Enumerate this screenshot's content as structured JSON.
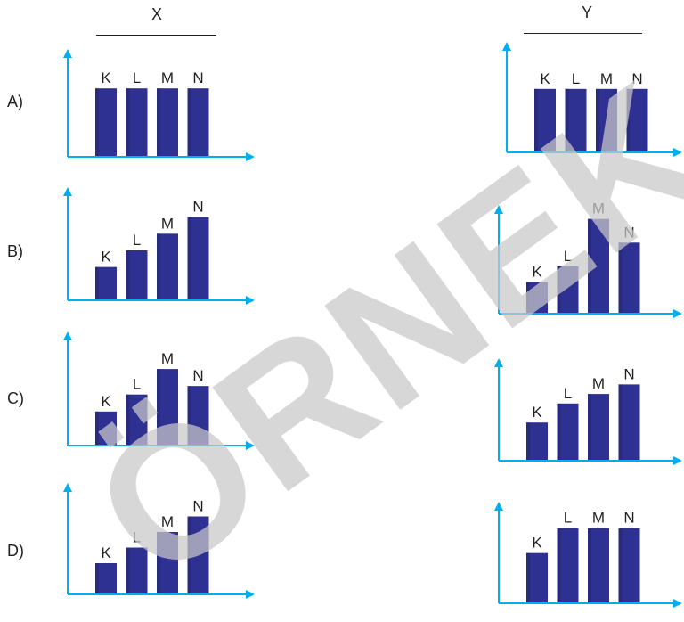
{
  "header": {
    "x": "X",
    "y": "Y"
  },
  "watermark": "ÖRNEK",
  "colors": {
    "bar": "#2e3192",
    "bar_dark": "#23266f",
    "axis": "#00aeef",
    "text": "#231f20"
  },
  "chart_data": [
    {
      "type": "bar",
      "row": "A)",
      "column": "X",
      "categories": [
        "K",
        "L",
        "M",
        "N"
      ],
      "values": [
        4,
        4,
        4,
        4
      ],
      "ylim": [
        0,
        5
      ]
    },
    {
      "type": "bar",
      "row": "A)",
      "column": "Y",
      "categories": [
        "K",
        "L",
        "M",
        "N"
      ],
      "values": [
        4,
        4,
        4,
        4
      ],
      "ylim": [
        0,
        5
      ]
    },
    {
      "type": "bar",
      "row": "B)",
      "column": "X",
      "categories": [
        "K",
        "L",
        "M",
        "N"
      ],
      "values": [
        2,
        3,
        4,
        5
      ],
      "ylim": [
        0,
        6
      ]
    },
    {
      "type": "bar",
      "row": "B)",
      "column": "Y",
      "categories": [
        "K",
        "L",
        "M",
        "N"
      ],
      "values": [
        2,
        3,
        6,
        4.5
      ],
      "ylim": [
        0,
        7
      ]
    },
    {
      "type": "bar",
      "row": "C)",
      "column": "X",
      "categories": [
        "K",
        "L",
        "M",
        "N"
      ],
      "values": [
        2,
        3,
        4.5,
        3.5
      ],
      "ylim": [
        0,
        5.5
      ]
    },
    {
      "type": "bar",
      "row": "C)",
      "column": "Y",
      "categories": [
        "K",
        "L",
        "M",
        "N"
      ],
      "values": [
        2,
        3,
        3.5,
        4
      ],
      "ylim": [
        0,
        5
      ]
    },
    {
      "type": "bar",
      "row": "D)",
      "column": "X",
      "categories": [
        "K",
        "L",
        "M",
        "N"
      ],
      "values": [
        2,
        3,
        4,
        5
      ],
      "ylim": [
        0,
        6
      ]
    },
    {
      "type": "bar",
      "row": "D)",
      "column": "Y",
      "categories": [
        "K",
        "L",
        "M",
        "N"
      ],
      "values": [
        2,
        3,
        3,
        3
      ],
      "ylim": [
        0,
        3.8
      ]
    }
  ]
}
